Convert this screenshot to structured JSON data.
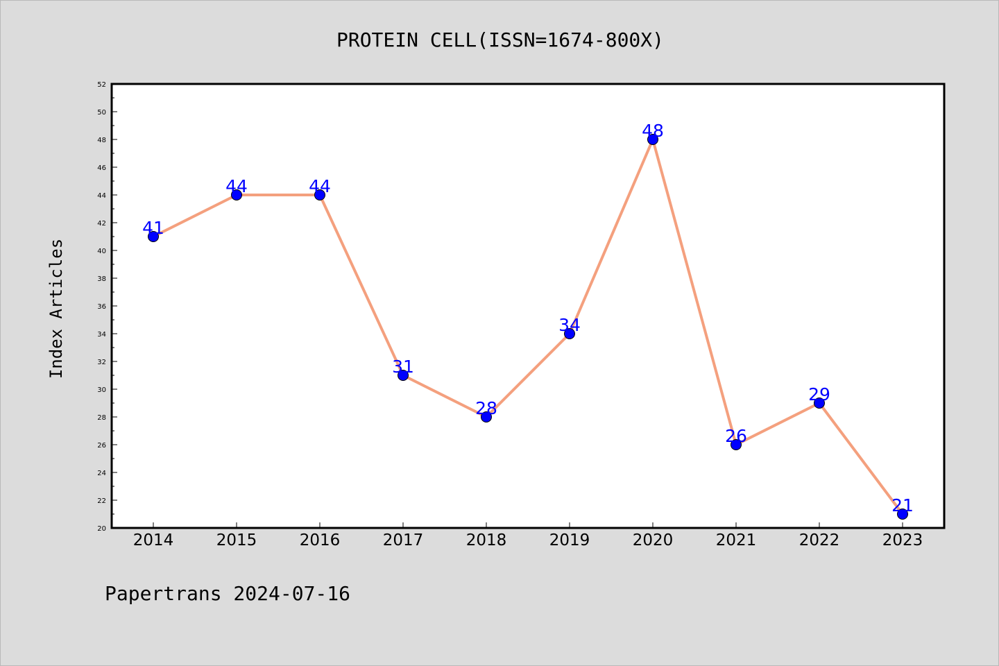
{
  "chart_data": {
    "type": "line",
    "title": "PROTEIN CELL(ISSN=1674-800X)",
    "xlabel": "",
    "ylabel": "Index Articles",
    "categories": [
      "2014",
      "2015",
      "2016",
      "2017",
      "2018",
      "2019",
      "2020",
      "2021",
      "2022",
      "2023"
    ],
    "values": [
      41,
      44,
      44,
      31,
      28,
      34,
      48,
      26,
      29,
      21
    ],
    "ylim": [
      20,
      52
    ],
    "ytick_step": 2,
    "grid": false,
    "legend": "none",
    "colors": {
      "line": "#f4a07e",
      "marker": "#0000ff",
      "data_label": "#0000ff",
      "background": "#dcdcdc",
      "plot_area": "#ffffff"
    }
  },
  "footer": {
    "text": "Papertrans 2024-07-16"
  }
}
